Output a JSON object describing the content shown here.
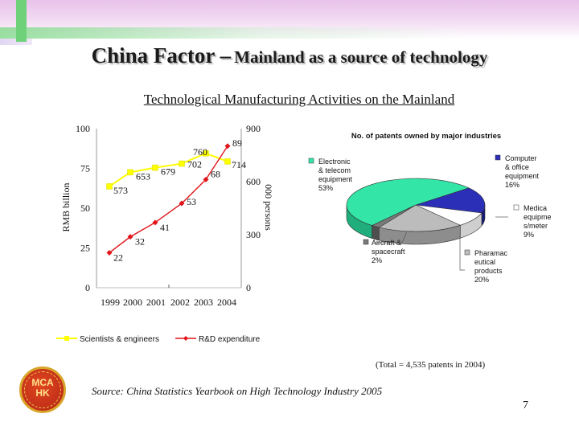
{
  "slide": {
    "title_main": "China Factor –",
    "title_rest": "Mainland as a source of technology",
    "subtitle": "Technological Manufacturing Activities on the Mainland",
    "total_note": "(Total = 4,535 patents in 2004)",
    "source": "Source: China Statistics Yearbook on High Technology Industry 2005",
    "page_number": "7",
    "logo_text_1": "MCA",
    "logo_text_2": "HK"
  },
  "colors": {
    "scientists": "#ffff00",
    "rd": "#e0141a",
    "electronic": "#33e6a8",
    "computer": "#2b2fb8",
    "medical": "#ffffff",
    "pharma": "#bcbcbc",
    "aircraft": "#7a7a7a"
  },
  "chart_data": [
    {
      "type": "line",
      "categories": [
        "1999",
        "2000",
        "2001",
        "2002",
        "2003",
        "2004"
      ],
      "left_axis_label": "RMB billion",
      "left_ticks": [
        "100",
        "75",
        "50",
        "25",
        "0"
      ],
      "left_ylim": [
        0,
        100
      ],
      "right_axis_label": "000 persons",
      "right_ticks": [
        "900",
        "600",
        "300",
        "0"
      ],
      "right_ylim": [
        0,
        900
      ],
      "series": [
        {
          "name": "Scientists & engineers",
          "axis": "right",
          "values": [
            573,
            653,
            679,
            702,
            760,
            714
          ],
          "labels": [
            "573",
            "653",
            "679",
            "702",
            "760",
            "714"
          ]
        },
        {
          "name": "R&D expenditure",
          "axis": "left",
          "values": [
            22,
            32,
            41,
            53,
            68,
            89
          ],
          "labels": [
            "22",
            "32",
            "41",
            "53",
            "68",
            "89"
          ]
        }
      ]
    },
    {
      "type": "pie",
      "title": "No. of patents owned by major industries",
      "slices": [
        {
          "name": "Electronic & telecom equipment",
          "lines": [
            "Electronic",
            "& telecom",
            "equipment",
            "53%"
          ],
          "value": 53
        },
        {
          "name": "Computer & office equipment",
          "lines": [
            "Computer",
            "& office",
            "equipment",
            "16%"
          ],
          "value": 16
        },
        {
          "name": "Medical equipment / meter",
          "lines": [
            "Medica",
            "equipme",
            "s/meter",
            "9%"
          ],
          "value": 9
        },
        {
          "name": "Pharmaceutical products",
          "lines": [
            "Pharamac",
            "eutical",
            "products",
            "20%"
          ],
          "value": 20
        },
        {
          "name": "Aircraft & spacecraft",
          "lines": [
            "Aircraft &",
            "spacecraft",
            "2%"
          ],
          "value": 2
        }
      ]
    }
  ]
}
